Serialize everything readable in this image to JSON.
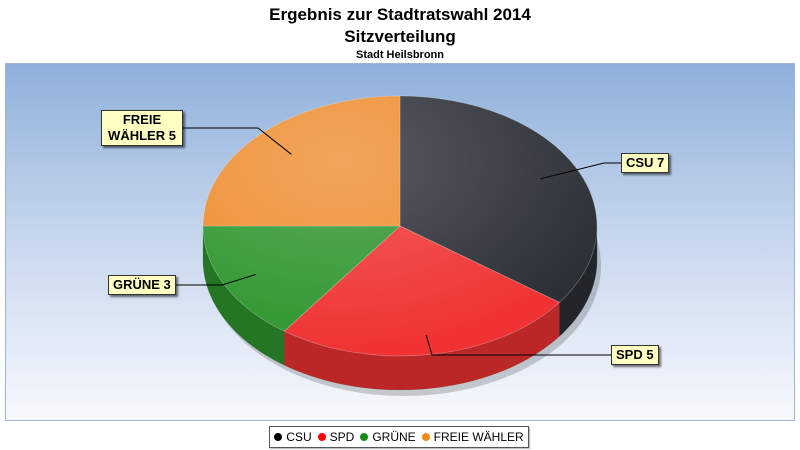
{
  "chart_data": {
    "type": "pie",
    "title": "Ergebnis zur Stadtratswahl 2014",
    "subtitle": "Sitzverteilung",
    "caption": "Stadt Heilsbronn",
    "categories": [
      "CSU",
      "SPD",
      "GRÜNE",
      "FREIE WÄHLER"
    ],
    "values": [
      7,
      5,
      3,
      5
    ],
    "labels": [
      "CSU 7",
      "SPD 5",
      "GRÜNE 3",
      "FREIE WÄHLER 5"
    ],
    "colors": [
      "#2b2f36",
      "#f03232",
      "#2e962e",
      "#ed8c2d"
    ],
    "legend_position": "bottom",
    "style": "3d"
  },
  "legend": {
    "items": [
      "CSU",
      "SPD",
      "GRÜNE",
      "FREIE WÄHLER"
    ]
  }
}
